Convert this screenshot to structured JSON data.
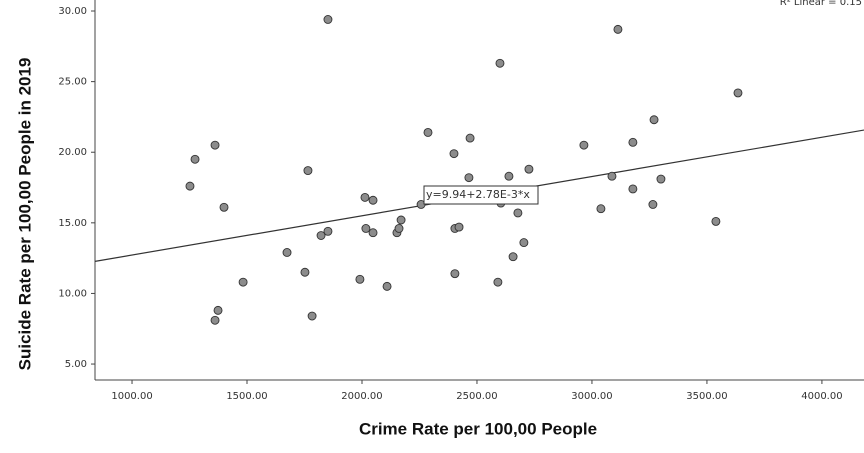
{
  "chart_data": {
    "type": "scatter",
    "x_label": "Crime Rate per 100,00 People",
    "y_label": "Suicide Rate per 100,00 People in 2019",
    "annotation": "R² Linear = 0.15",
    "fit": {
      "intercept": 9.94,
      "slope": 0.00278,
      "label": "y=9.94+2.78E-3*x"
    },
    "xlim": [
      839,
      4183
    ],
    "ylim": [
      3.87,
      30.78
    ],
    "xticks": [
      {
        "value": 1000,
        "label": "1000.00"
      },
      {
        "value": 1500,
        "label": "1500.00"
      },
      {
        "value": 2000,
        "label": "2000.00"
      },
      {
        "value": 2500,
        "label": "2500.00"
      },
      {
        "value": 3000,
        "label": "3000.00"
      },
      {
        "value": 3500,
        "label": "3500.00"
      },
      {
        "value": 4000,
        "label": "4000.00"
      }
    ],
    "yticks": [
      {
        "value": 5,
        "label": "5.00"
      },
      {
        "value": 10,
        "label": "10.00"
      },
      {
        "value": 15,
        "label": "15.00"
      },
      {
        "value": 20,
        "label": "20.00"
      },
      {
        "value": 25,
        "label": "25.00"
      },
      {
        "value": 30,
        "label": "30.00"
      }
    ],
    "color": "#8c8c8c",
    "series": [
      {
        "x": [
          1252,
          1274,
          1361,
          1400,
          1374,
          1361,
          1483,
          1674,
          1752,
          1765,
          1783,
          1822,
          1852,
          1852,
          1991,
          2013,
          2048,
          2017,
          2048,
          2109,
          2152,
          2161,
          2170,
          2257,
          2287,
          2400,
          2465,
          2470,
          2404,
          2422,
          2404,
          2600,
          2591,
          2604,
          2639,
          2657,
          2678,
          2704,
          2726,
          2965,
          3039,
          3087,
          3113,
          3178,
          3178,
          3270,
          3265,
          3300,
          3539,
          3635
        ],
        "values": [
          17.6,
          19.5,
          20.5,
          16.1,
          8.8,
          8.1,
          10.8,
          12.9,
          11.5,
          18.7,
          8.4,
          14.1,
          14.4,
          29.4,
          11.0,
          16.8,
          16.6,
          14.6,
          14.3,
          10.5,
          14.3,
          14.6,
          15.2,
          16.3,
          21.4,
          19.9,
          18.2,
          21.0,
          14.6,
          14.7,
          11.4,
          26.3,
          10.8,
          16.4,
          18.3,
          12.6,
          15.7,
          13.6,
          18.8,
          20.5,
          16.0,
          18.3,
          28.7,
          20.7,
          17.4,
          22.3,
          16.3,
          18.1,
          15.1,
          24.2
        ]
      }
    ]
  }
}
